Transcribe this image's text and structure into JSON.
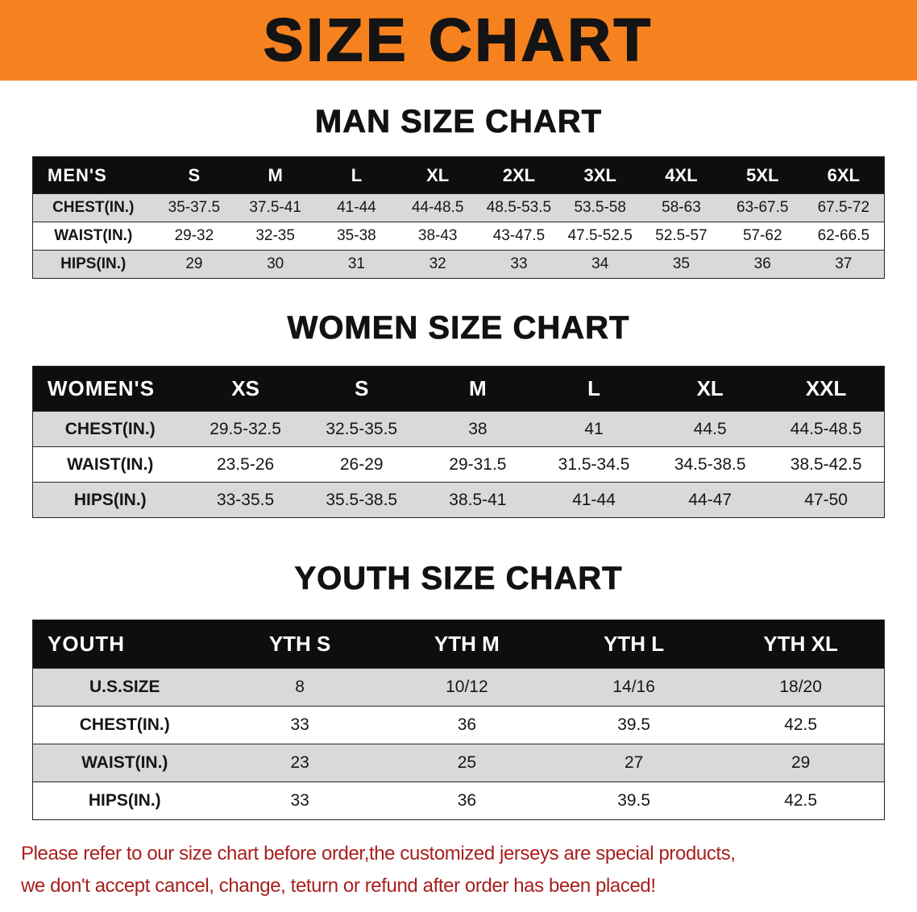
{
  "banner": {
    "title": "SIZE CHART"
  },
  "sections": [
    {
      "heading": "MAN SIZE CHART",
      "table": {
        "header": [
          "MEN'S",
          "S",
          "M",
          "L",
          "XL",
          "2XL",
          "3XL",
          "4XL",
          "5XL",
          "6XL"
        ],
        "rows": [
          {
            "label": "CHEST(IN.)",
            "values": [
              "35-37.5",
              "37.5-41",
              "41-44",
              "44-48.5",
              "48.5-53.5",
              "53.5-58",
              "58-63",
              "63-67.5",
              "67.5-72"
            ]
          },
          {
            "label": "WAIST(IN.)",
            "values": [
              "29-32",
              "32-35",
              "35-38",
              "38-43",
              "43-47.5",
              "47.5-52.5",
              "52.5-57",
              "57-62",
              "62-66.5"
            ]
          },
          {
            "label": "HIPS(IN.)",
            "values": [
              "29",
              "30",
              "31",
              "32",
              "33",
              "34",
              "35",
              "36",
              "37"
            ]
          }
        ]
      }
    },
    {
      "heading": "WOMEN SIZE CHART",
      "table": {
        "header": [
          "WOMEN'S",
          "XS",
          "S",
          "M",
          "L",
          "XL",
          "XXL"
        ],
        "rows": [
          {
            "label": "CHEST(IN.)",
            "values": [
              "29.5-32.5",
              "32.5-35.5",
              "38",
              "41",
              "44.5",
              "44.5-48.5"
            ]
          },
          {
            "label": "WAIST(IN.)",
            "values": [
              "23.5-26",
              "26-29",
              "29-31.5",
              "31.5-34.5",
              "34.5-38.5",
              "38.5-42.5"
            ]
          },
          {
            "label": "HIPS(IN.)",
            "values": [
              "33-35.5",
              "35.5-38.5",
              "38.5-41",
              "41-44",
              "44-47",
              "47-50"
            ]
          }
        ]
      }
    },
    {
      "heading": "YOUTH SIZE CHART",
      "table": {
        "header": [
          "YOUTH",
          "YTH S",
          "YTH M",
          "YTH L",
          "YTH XL"
        ],
        "rows": [
          {
            "label": "U.S.SIZE",
            "values": [
              "8",
              "10/12",
              "14/16",
              "18/20"
            ]
          },
          {
            "label": "CHEST(IN.)",
            "values": [
              "33",
              "36",
              "39.5",
              "42.5"
            ]
          },
          {
            "label": "WAIST(IN.)",
            "values": [
              "23",
              "25",
              "27",
              "29"
            ]
          },
          {
            "label": "HIPS(IN.)",
            "values": [
              "33",
              "36",
              "39.5",
              "42.5"
            ]
          }
        ]
      }
    }
  ],
  "footer": {
    "line1": "Please refer to our size chart before order,the customized jerseys are special products,",
    "line2": "we don't accept cancel, change, teturn or refund after order has been placed!"
  },
  "colors": {
    "banner_orange": "#F6821F",
    "header_black": "#0E0E0E",
    "row_gray": "#D9D9D9",
    "footer_red": "#A8201D"
  }
}
